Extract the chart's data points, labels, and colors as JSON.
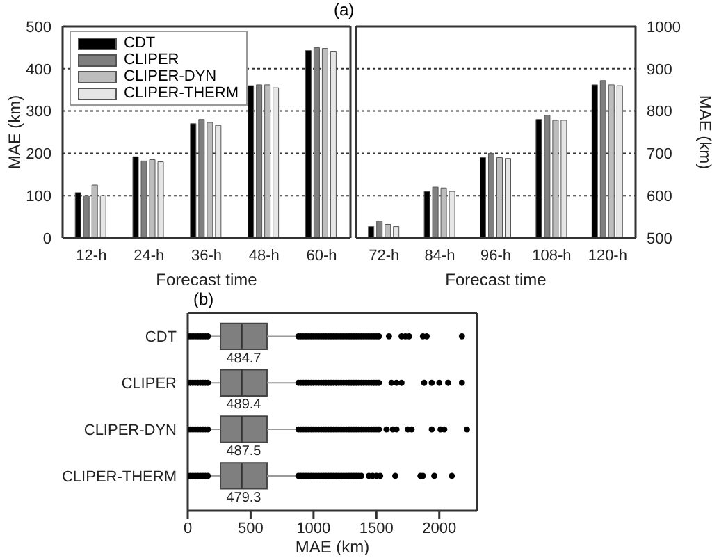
{
  "chart_data": [
    {
      "type": "bar",
      "title": "(a)",
      "categories": [
        "12-h",
        "24-h",
        "36-h",
        "48-h",
        "60-h"
      ],
      "xlabel": "Forecast time",
      "ylabel": "MAE (km)",
      "ylim": [
        0,
        500
      ],
      "yticks": [
        0,
        100,
        200,
        300,
        400,
        500
      ],
      "grid": "y",
      "legend": "top left",
      "series": [
        {
          "name": "CDT",
          "color": "#000000",
          "values": [
            107,
            192,
            270,
            360,
            443
          ]
        },
        {
          "name": "CLIPER",
          "color": "#7f7f7f",
          "values": [
            100,
            182,
            280,
            362,
            450
          ]
        },
        {
          "name": "CLIPER-DYN",
          "color": "#bdbdbd",
          "values": [
            125,
            185,
            273,
            362,
            448
          ]
        },
        {
          "name": "CLIPER-THERM",
          "color": "#e6e6e6",
          "values": [
            100,
            180,
            266,
            355,
            440
          ]
        }
      ]
    },
    {
      "type": "bar",
      "categories": [
        "72-h",
        "84-h",
        "96-h",
        "108-h",
        "120-h"
      ],
      "xlabel": "Forecast time",
      "y2label": "MAE (km)",
      "y2lim": [
        500,
        1000
      ],
      "y2ticks": [
        500,
        600,
        700,
        800,
        900,
        1000
      ],
      "grid": "y",
      "series": [
        {
          "color": "#000000",
          "axis": "y2",
          "values": [
            527,
            610,
            690,
            780,
            862
          ]
        },
        {
          "color": "#7f7f7f",
          "axis": "y2",
          "values": [
            540,
            620,
            700,
            790,
            872
          ]
        },
        {
          "color": "#bdbdbd",
          "axis": "y2",
          "values": [
            532,
            618,
            690,
            778,
            862
          ]
        },
        {
          "color": "#e6e6e6",
          "axis": "y2",
          "values": [
            527,
            610,
            688,
            778,
            860
          ]
        }
      ]
    },
    {
      "type": "box",
      "title": "(b)",
      "orientation": "horizontal",
      "categories": [
        "CDT",
        "CLIPER",
        "CLIPER-DYN",
        "CLIPER-THERM"
      ],
      "color": "#7f7f7f",
      "xlabel": "MAE (km)",
      "xlim": [
        0,
        2300
      ],
      "xticks": [
        0,
        500,
        1000,
        1500,
        2000
      ],
      "annotations": [
        "484.7",
        "489.4",
        "487.5",
        "479.3"
      ],
      "boxes": [
        {
          "low": 170,
          "q1": 260,
          "median": 430,
          "q3": 630,
          "high": 870,
          "outliers": [
            0,
            20,
            40,
            60,
            80,
            100,
            120,
            140,
            160,
            880,
            900,
            920,
            940,
            960,
            980,
            1000,
            1020,
            1040,
            1060,
            1080,
            1100,
            1120,
            1140,
            1160,
            1180,
            1200,
            1220,
            1240,
            1260,
            1280,
            1300,
            1320,
            1340,
            1360,
            1380,
            1400,
            1420,
            1440,
            1460,
            1480,
            1500,
            1520,
            1600,
            1700,
            1730,
            1760,
            1870,
            1900,
            2180
          ]
        },
        {
          "low": 170,
          "q1": 260,
          "median": 430,
          "q3": 630,
          "high": 870,
          "outliers": [
            0,
            20,
            40,
            60,
            80,
            100,
            120,
            140,
            160,
            880,
            900,
            920,
            940,
            960,
            980,
            1000,
            1020,
            1040,
            1060,
            1080,
            1100,
            1120,
            1140,
            1160,
            1180,
            1200,
            1220,
            1240,
            1260,
            1280,
            1300,
            1320,
            1340,
            1360,
            1380,
            1400,
            1420,
            1440,
            1460,
            1480,
            1500,
            1520,
            1620,
            1660,
            1700,
            1880,
            1940,
            2000,
            2070,
            2180
          ]
        },
        {
          "low": 170,
          "q1": 260,
          "median": 430,
          "q3": 630,
          "high": 870,
          "outliers": [
            0,
            20,
            40,
            60,
            80,
            100,
            120,
            140,
            160,
            880,
            900,
            920,
            940,
            960,
            980,
            1000,
            1020,
            1040,
            1060,
            1080,
            1100,
            1120,
            1140,
            1160,
            1180,
            1200,
            1220,
            1240,
            1260,
            1280,
            1300,
            1320,
            1340,
            1360,
            1380,
            1400,
            1420,
            1440,
            1460,
            1480,
            1500,
            1520,
            1580,
            1630,
            1660,
            1750,
            1780,
            1940,
            2010,
            2040,
            2220
          ]
        },
        {
          "low": 170,
          "q1": 260,
          "median": 430,
          "q3": 630,
          "high": 870,
          "outliers": [
            0,
            20,
            40,
            60,
            80,
            100,
            120,
            140,
            160,
            880,
            900,
            920,
            940,
            960,
            980,
            1000,
            1020,
            1040,
            1060,
            1080,
            1100,
            1120,
            1140,
            1160,
            1180,
            1200,
            1220,
            1240,
            1260,
            1280,
            1300,
            1320,
            1340,
            1360,
            1380,
            1440,
            1470,
            1500,
            1530,
            1650,
            1850,
            1870,
            1960,
            2100
          ]
        }
      ]
    }
  ]
}
